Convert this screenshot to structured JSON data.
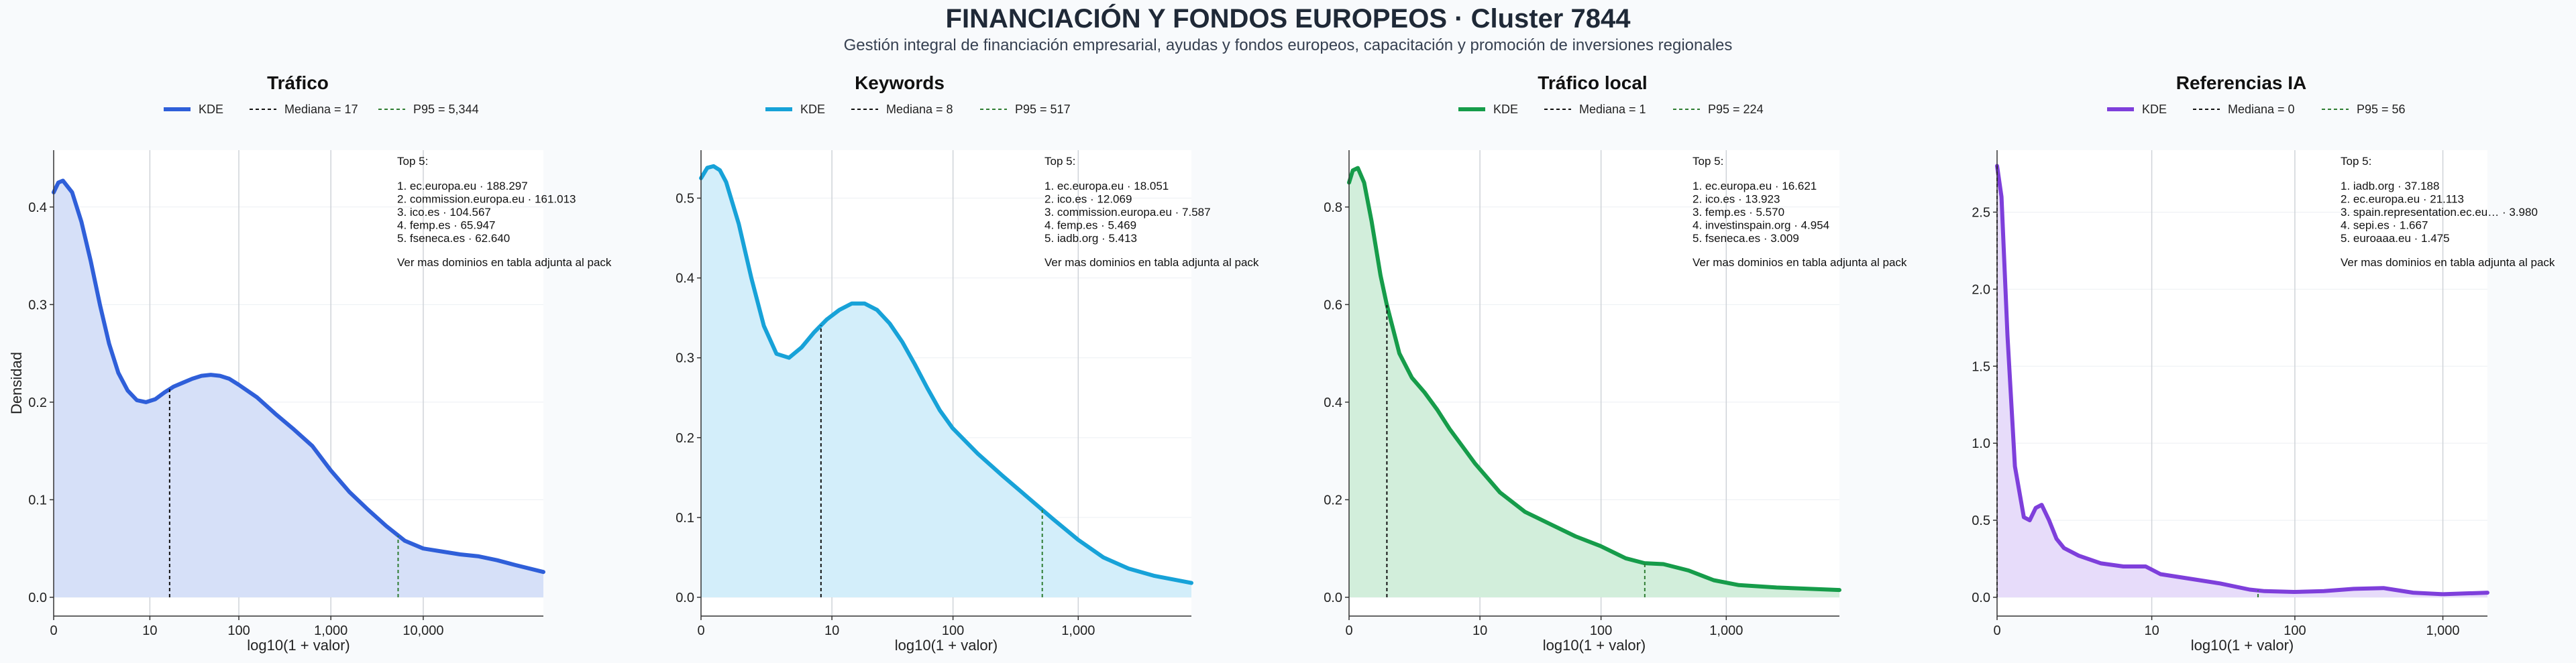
{
  "header": {
    "title": "FINANCIACIÓN Y FONDOS EUROPEOS · Cluster 7844",
    "subtitle": "Gestión integral de financiación empresarial, ayudas y fondos europeos, capacitación y promoción de inversiones regionales"
  },
  "chart_data": [
    {
      "type": "area",
      "title": "Tráfico",
      "xlabel": "log10(1 + valor)",
      "ylabel": "Densidad",
      "color": "#2f5fd9",
      "fill": "#d6e0f8",
      "xlim": [
        0,
        5.3
      ],
      "ylim": [
        0,
        0.45
      ],
      "xticks": [
        {
          "v": 0,
          "label": "0"
        },
        {
          "v": 1.041,
          "label": "10"
        },
        {
          "v": 2.004,
          "label": "100"
        },
        {
          "v": 3.0,
          "label": "1,000"
        },
        {
          "v": 4.0,
          "label": "10,000"
        }
      ],
      "yticks": [
        0,
        0.1,
        0.2,
        0.3,
        0.4
      ],
      "ytick_labels": [
        "0.0",
        "0.1",
        "0.2",
        "0.3",
        "0.4"
      ],
      "legend": [
        "KDE",
        "Mediana = 17",
        "P95 = 5,344"
      ],
      "median_x": 1.255,
      "p95_x": 3.728,
      "top_title": "Top 5:",
      "top": [
        "1. ec.europa.eu · 188.297",
        "2. commission.europa.eu · 161.013",
        "3. ico.es · 104.567",
        "4. femp.es · 65.947",
        "5. fseneca.es · 62.640"
      ],
      "footer_note": "Ver mas dominios en tabla adjunta al pack",
      "x": [
        0,
        0.05,
        0.1,
        0.2,
        0.3,
        0.4,
        0.5,
        0.6,
        0.7,
        0.8,
        0.9,
        1.0,
        1.1,
        1.2,
        1.3,
        1.4,
        1.5,
        1.6,
        1.7,
        1.8,
        1.9,
        2.0,
        2.2,
        2.4,
        2.6,
        2.8,
        3.0,
        3.2,
        3.4,
        3.6,
        3.8,
        4.0,
        4.2,
        4.4,
        4.6,
        4.8,
        5.0,
        5.3
      ],
      "y": [
        0.415,
        0.425,
        0.427,
        0.415,
        0.385,
        0.345,
        0.3,
        0.26,
        0.23,
        0.212,
        0.202,
        0.2,
        0.203,
        0.21,
        0.216,
        0.22,
        0.224,
        0.227,
        0.228,
        0.227,
        0.224,
        0.218,
        0.205,
        0.188,
        0.172,
        0.155,
        0.13,
        0.108,
        0.09,
        0.073,
        0.058,
        0.05,
        0.047,
        0.044,
        0.042,
        0.038,
        0.033,
        0.026
      ]
    },
    {
      "type": "area",
      "title": "Keywords",
      "xlabel": "log10(1 + valor)",
      "ylabel": "",
      "color": "#17a2d8",
      "fill": "#d3eefa",
      "xlim": [
        0,
        3.9
      ],
      "ylim": [
        0,
        0.55
      ],
      "xticks": [
        {
          "v": 0,
          "label": "0"
        },
        {
          "v": 1.041,
          "label": "10"
        },
        {
          "v": 2.004,
          "label": "100"
        },
        {
          "v": 3.0,
          "label": "1,000"
        }
      ],
      "yticks": [
        0,
        0.1,
        0.2,
        0.3,
        0.4,
        0.5
      ],
      "ytick_labels": [
        "0.0",
        "0.1",
        "0.2",
        "0.3",
        "0.4",
        "0.5"
      ],
      "legend": [
        "KDE",
        "Mediana = 8",
        "P95 = 517"
      ],
      "median_x": 0.954,
      "p95_x": 2.714,
      "top_title": "Top 5:",
      "top": [
        "1. ec.europa.eu · 18.051",
        "2. ico.es · 12.069",
        "3. commission.europa.eu · 7.587",
        "4. femp.es · 5.469",
        "5. iadb.org · 5.413"
      ],
      "footer_note": "Ver mas dominios en tabla adjunta al pack",
      "x": [
        0,
        0.05,
        0.1,
        0.15,
        0.2,
        0.3,
        0.4,
        0.5,
        0.6,
        0.7,
        0.8,
        0.9,
        1.0,
        1.1,
        1.2,
        1.3,
        1.4,
        1.5,
        1.6,
        1.7,
        1.8,
        1.9,
        2.0,
        2.2,
        2.4,
        2.6,
        2.8,
        3.0,
        3.2,
        3.4,
        3.6,
        3.9
      ],
      "y": [
        0.525,
        0.538,
        0.54,
        0.535,
        0.52,
        0.468,
        0.4,
        0.34,
        0.305,
        0.3,
        0.313,
        0.332,
        0.348,
        0.36,
        0.368,
        0.368,
        0.36,
        0.343,
        0.32,
        0.292,
        0.262,
        0.234,
        0.212,
        0.18,
        0.152,
        0.125,
        0.098,
        0.072,
        0.05,
        0.036,
        0.027,
        0.018
      ]
    },
    {
      "type": "area",
      "title": "Tráfico local",
      "xlabel": "log10(1 + valor)",
      "ylabel": "",
      "color": "#169c4a",
      "fill": "#d2eedb",
      "xlim": [
        0,
        3.9
      ],
      "ylim": [
        0,
        0.9
      ],
      "xticks": [
        {
          "v": 0,
          "label": "0"
        },
        {
          "v": 1.041,
          "label": "10"
        },
        {
          "v": 2.004,
          "label": "100"
        },
        {
          "v": 3.0,
          "label": "1,000"
        }
      ],
      "yticks": [
        0,
        0.2,
        0.4,
        0.6,
        0.8
      ],
      "ytick_labels": [
        "0.0",
        "0.2",
        "0.4",
        "0.6",
        "0.8"
      ],
      "legend": [
        "KDE",
        "Mediana = 1",
        "P95 = 224"
      ],
      "median_x": 0.301,
      "p95_x": 2.352,
      "top_title": "Top 5:",
      "top": [
        "1. ec.europa.eu · 16.621",
        "2. ico.es · 13.923",
        "3. femp.es · 5.570",
        "4. investinspain.org · 4.954",
        "5. fseneca.es · 3.009"
      ],
      "footer_note": "Ver mas dominios en tabla adjunta al pack",
      "x": [
        0,
        0.03,
        0.07,
        0.12,
        0.18,
        0.25,
        0.3,
        0.4,
        0.5,
        0.6,
        0.7,
        0.8,
        0.9,
        1.0,
        1.2,
        1.4,
        1.6,
        1.8,
        2.0,
        2.2,
        2.35,
        2.5,
        2.7,
        2.9,
        3.1,
        3.4,
        3.9
      ],
      "y": [
        0.85,
        0.875,
        0.88,
        0.85,
        0.77,
        0.66,
        0.6,
        0.5,
        0.45,
        0.42,
        0.385,
        0.345,
        0.31,
        0.275,
        0.215,
        0.175,
        0.15,
        0.125,
        0.105,
        0.08,
        0.07,
        0.068,
        0.055,
        0.035,
        0.025,
        0.02,
        0.015
      ]
    },
    {
      "type": "area",
      "title": "Referencias IA",
      "xlabel": "log10(1 + valor)",
      "ylabel": "",
      "color": "#7e3fdb",
      "fill": "#e7dcfa",
      "xlim": [
        0,
        3.3
      ],
      "ylim": [
        0,
        2.85
      ],
      "xticks": [
        {
          "v": 0,
          "label": "0"
        },
        {
          "v": 1.041,
          "label": "10"
        },
        {
          "v": 2.004,
          "label": "100"
        },
        {
          "v": 3.0,
          "label": "1,000"
        }
      ],
      "yticks": [
        0,
        0.5,
        1.0,
        1.5,
        2.0,
        2.5
      ],
      "ytick_labels": [
        "0.0",
        "0.5",
        "1.0",
        "1.5",
        "2.0",
        "2.5"
      ],
      "legend": [
        "KDE",
        "Mediana = 0",
        "P95 = 56"
      ],
      "median_x": 0,
      "p95_x": 1.756,
      "top_title": "Top 5:",
      "top": [
        "1. iadb.org · 37.188",
        "2. ec.europa.eu · 21.113",
        "3. spain.representation.ec.eu… · 3.980",
        "4. sepi.es · 1.667",
        "5. euroaaa.eu · 1.475"
      ],
      "footer_note": "Ver mas dominios en tabla adjunta al pack",
      "x": [
        0,
        0.03,
        0.07,
        0.12,
        0.18,
        0.22,
        0.26,
        0.3,
        0.35,
        0.4,
        0.45,
        0.55,
        0.7,
        0.85,
        1.0,
        1.1,
        1.3,
        1.5,
        1.7,
        1.8,
        2.0,
        2.2,
        2.4,
        2.6,
        2.8,
        3.0,
        3.3
      ],
      "y": [
        2.8,
        2.6,
        1.7,
        0.85,
        0.52,
        0.5,
        0.58,
        0.6,
        0.5,
        0.38,
        0.32,
        0.27,
        0.22,
        0.2,
        0.2,
        0.15,
        0.12,
        0.09,
        0.05,
        0.04,
        0.035,
        0.04,
        0.055,
        0.06,
        0.03,
        0.02,
        0.03
      ]
    }
  ]
}
